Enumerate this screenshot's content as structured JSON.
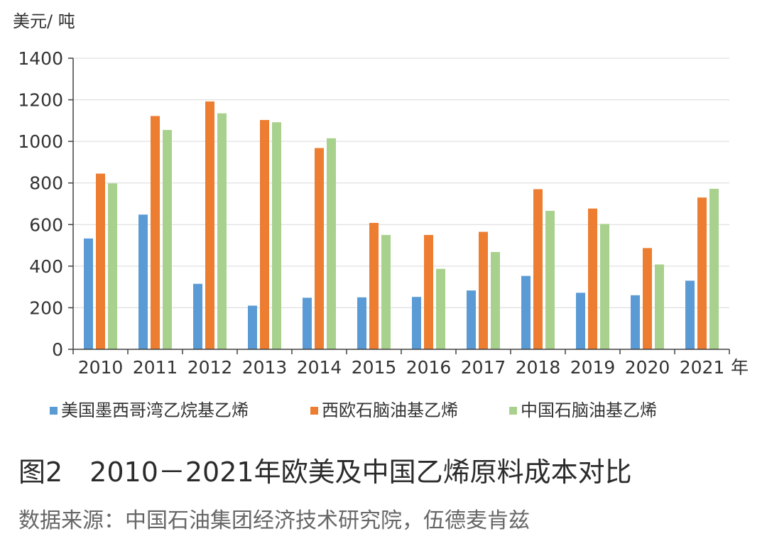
{
  "chart_data": {
    "type": "bar",
    "ylabel": "美元/ 吨",
    "xlabel": "年",
    "categories": [
      "2010",
      "2011",
      "2012",
      "2013",
      "2014",
      "2015",
      "2016",
      "2017",
      "2018",
      "2019",
      "2020",
      "2021"
    ],
    "ylim": [
      0,
      1400
    ],
    "yticks": [
      0,
      200,
      400,
      600,
      800,
      1000,
      1200,
      1400
    ],
    "grid": true,
    "legend_position": "bottom",
    "series": [
      {
        "name": "美国墨西哥湾乙烷基乙烯",
        "color": "#5b9bd5",
        "values": [
          533,
          648,
          315,
          210,
          248,
          250,
          252,
          283,
          353,
          272,
          260,
          330
        ]
      },
      {
        "name": "西欧石脑油基乙烯",
        "color": "#ed7d31",
        "values": [
          845,
          1122,
          1192,
          1103,
          968,
          608,
          550,
          565,
          770,
          677,
          487,
          730
        ]
      },
      {
        "name": "中国石脑油基乙烯",
        "color": "#a9d18e",
        "values": [
          798,
          1055,
          1135,
          1092,
          1015,
          550,
          387,
          468,
          666,
          603,
          408,
          772
        ]
      }
    ]
  },
  "caption": "图2　2010－2021年欧美及中国乙烯原料成本对比",
  "source": "数据来源：中国石油集团经济技术研究院，伍德麦肯兹"
}
